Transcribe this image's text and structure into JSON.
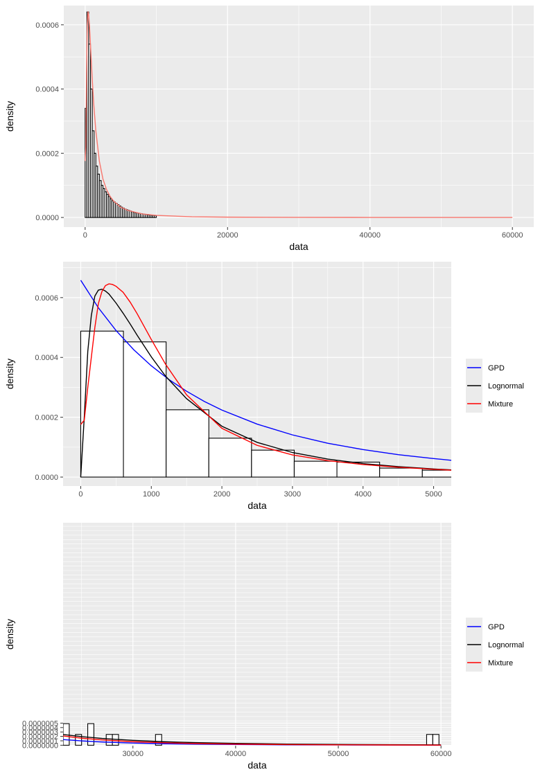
{
  "colors": {
    "panel_bg": "#EBEBEB",
    "grid_major": "#FFFFFF",
    "tick_text": "#4D4D4D",
    "axis_title": "#000000",
    "hist_stroke": "#000000",
    "hist_fill": "#FFFFFF",
    "gpd": "#0000FF",
    "lognormal": "#000000",
    "mixture": "#FF0000",
    "mixture_top": "#F8766D"
  },
  "chart_data": [
    {
      "type": "histogram-with-density",
      "xlabel": "data",
      "ylabel": "density",
      "xlim": [
        -3000,
        63000
      ],
      "ylim": [
        -3e-05,
        0.00066
      ],
      "x_ticks": [
        0,
        20000,
        40000,
        60000
      ],
      "x_tick_labels": [
        "0",
        "20000",
        "40000",
        "60000"
      ],
      "y_ticks": [
        0,
        0.0002,
        0.0004,
        0.0006
      ],
      "y_tick_labels": [
        "0.0000",
        "0.0002",
        "0.0004",
        "0.0006"
      ],
      "bin_width": 250,
      "bin_start": 0,
      "bars": [
        0.00034,
        0.00064,
        0.00054,
        0.0004,
        0.00027,
        0.0002,
        0.00016,
        0.000135,
        0.000115,
        0.0001,
        9e-05,
        8e-05,
        7.2e-05,
        6.5e-05,
        5.8e-05,
        5.2e-05,
        4.8e-05,
        4.4e-05,
        4e-05,
        3.6e-05,
        3.2e-05,
        2.9e-05,
        2.6e-05,
        2.4e-05,
        2.2e-05,
        2e-05,
        1.8e-05,
        1.6e-05,
        1.5e-05,
        1.4e-05,
        1.3e-05,
        1.2e-05,
        1.1e-05,
        1e-05,
        9e-06,
        8e-06,
        7.5e-06,
        7e-06,
        6.5e-06,
        6e-06
      ],
      "legend": "none",
      "grid": true,
      "series": [
        {
          "name": "Mixture",
          "x": [
            0,
            100,
            200,
            300,
            400,
            500,
            600,
            700,
            800,
            1000,
            1200,
            1500,
            2000,
            2500,
            3000,
            3500,
            4000,
            5000,
            6000,
            8000,
            10000,
            15000,
            20000,
            30000,
            40000,
            50000,
            60000
          ],
          "y": [
            0.000176,
            0.00022,
            0.00045,
            0.0006,
            0.000642,
            0.00063,
            0.0006,
            0.00056,
            0.000515,
            0.00043,
            0.000355,
            0.00027,
            0.000175,
            0.00012,
            8.7e-05,
            6.6e-05,
            5.1e-05,
            3.2e-05,
            2.2e-05,
            1.1e-05,
            6.5e-06,
            2.2e-06,
            1e-06,
            3e-07,
            1.2e-07,
            6e-08,
            3e-08
          ]
        }
      ]
    },
    {
      "type": "histogram-with-density",
      "xlabel": "data",
      "ylabel": "density",
      "xlim": [
        -250,
        5250
      ],
      "ylim": [
        -3e-05,
        0.00072
      ],
      "x_ticks": [
        0,
        1000,
        2000,
        3000,
        4000,
        5000
      ],
      "x_tick_labels": [
        "0",
        "1000",
        "2000",
        "3000",
        "4000",
        "5000"
      ],
      "y_ticks": [
        0,
        0.0002,
        0.0004,
        0.0006
      ],
      "y_tick_labels": [
        "0.0000",
        "0.0002",
        "0.0004",
        "0.0006"
      ],
      "bin_width": 605,
      "bin_start": 0,
      "bars": [
        0.000488,
        0.000452,
        0.000225,
        0.00013,
        9e-05,
        5.3e-05,
        5e-05,
        3e-05,
        2.3e-05
      ],
      "legend": "right",
      "grid": true,
      "series": [
        {
          "name": "GPD",
          "x": [
            0,
            250,
            500,
            750,
            1000,
            1250,
            1500,
            1750,
            2000,
            2500,
            3000,
            3500,
            4000,
            4500,
            5000,
            5250
          ],
          "y": [
            0.000658,
            0.000566,
            0.00049,
            0.000426,
            0.000372,
            0.000326,
            0.000287,
            0.000253,
            0.000224,
            0.000177,
            0.000141,
            0.000113,
            9.2e-05,
            7.5e-05,
            6.2e-05,
            5.6e-05
          ]
        },
        {
          "name": "Lognormal",
          "x": [
            0,
            50,
            100,
            150,
            200,
            250,
            300,
            350,
            400,
            500,
            600,
            700,
            800,
            1000,
            1200,
            1500,
            2000,
            2500,
            3000,
            3500,
            4000,
            4500,
            5000,
            5250
          ],
          "y": [
            0,
            0.0002,
            0.00042,
            0.00054,
            0.000605,
            0.000625,
            0.000628,
            0.000622,
            0.000612,
            0.000582,
            0.000548,
            0.000512,
            0.000474,
            0.000402,
            0.000338,
            0.000262,
            0.00017,
            0.000116,
            8.2e-05,
            6e-05,
            4.5e-05,
            3.5e-05,
            2.7e-05,
            2.4e-05
          ]
        },
        {
          "name": "Mixture",
          "x": [
            0,
            50,
            100,
            150,
            200,
            250,
            300,
            350,
            400,
            450,
            500,
            600,
            700,
            800,
            1000,
            1200,
            1500,
            2000,
            2500,
            3000,
            3500,
            4000,
            4500,
            5000,
            5250
          ],
          "y": [
            0.000176,
            0.00019,
            0.0003,
            0.0004,
            0.0005,
            0.00058,
            0.00062,
            0.00064,
            0.000646,
            0.000644,
            0.000638,
            0.000618,
            0.000585,
            0.000546,
            0.00046,
            0.000378,
            0.000275,
            0.000163,
            0.000106,
            7.4e-05,
            5.5e-05,
            4.2e-05,
            3.3e-05,
            2.6e-05,
            2.3e-05
          ]
        }
      ]
    },
    {
      "type": "histogram-with-density",
      "xlabel": "data",
      "ylabel": "density",
      "xlim": [
        23200,
        61000
      ],
      "ylim": [
        -1e-08,
        5.03e-06
      ],
      "x_ticks": [
        30000,
        40000,
        50000,
        60000
      ],
      "x_tick_labels": [
        "30000",
        "40000",
        "50000",
        "60000"
      ],
      "y_ticks": [
        0,
        1e-07,
        2e-07,
        3e-07,
        4e-07,
        5e-07
      ],
      "y_tick_labels": [
        "0.0000000",
        "0.0000001",
        "0.0000002",
        "0.0000003",
        "0.0000004",
        "0.0000005"
      ],
      "bin_width": 600,
      "bin_start": 23200,
      "bars": [
        4.88e-07,
        0,
        2.44e-07,
        0,
        4.88e-07,
        0,
        0,
        2.44e-07,
        2.44e-07,
        0,
        0,
        0,
        0,
        0,
        0,
        2.44e-07,
        0,
        0,
        0,
        0,
        0,
        0,
        0,
        0,
        0,
        0,
        0,
        0,
        0,
        0,
        0,
        0,
        0,
        0,
        0,
        0,
        0,
        0,
        0,
        0,
        0,
        0,
        0,
        0,
        0,
        0,
        0,
        0,
        0,
        0,
        0,
        0,
        0,
        0,
        0,
        0,
        0,
        0,
        0,
        2.44e-07,
        2.44e-07
      ],
      "legend": "right",
      "grid": true,
      "series": [
        {
          "name": "GPD",
          "x": [
            23200,
            25000,
            27000,
            30000,
            33000,
            36000,
            40000,
            45000,
            50000,
            55000,
            60000
          ],
          "y": [
            1.28e-07,
            9.8e-08,
            7.4e-08,
            5e-08,
            3.5e-08,
            2.5e-08,
            1.6e-08,
            9.5e-09,
            6e-09,
            4e-09,
            2.7e-09
          ]
        },
        {
          "name": "Lognormal",
          "x": [
            23200,
            25000,
            27000,
            30000,
            33000,
            36000,
            40000,
            45000,
            50000,
            55000,
            60000
          ],
          "y": [
            2.43e-07,
            1.95e-07,
            1.54e-07,
            1.1e-07,
            8e-08,
            6e-08,
            4.2e-08,
            2.7e-08,
            1.8e-08,
            1.2e-08,
            8.5e-09
          ]
        },
        {
          "name": "Mixture",
          "x": [
            23200,
            25000,
            27000,
            30000,
            33000,
            36000,
            40000,
            45000,
            50000,
            55000,
            60000
          ],
          "y": [
            2.1e-07,
            1.6e-07,
            1.2e-07,
            8e-08,
            5.5e-08,
            3.9e-08,
            2.5e-08,
            1.5e-08,
            9e-09,
            5.5e-09,
            3.5e-09
          ]
        }
      ]
    }
  ]
}
